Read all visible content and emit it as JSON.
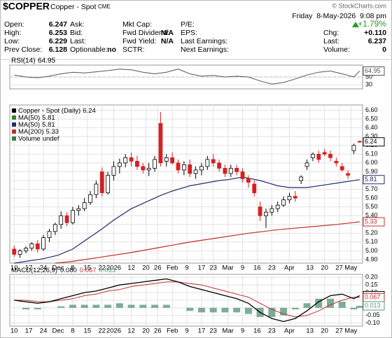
{
  "header": {
    "symbol": "$COPPER",
    "name": "Copper - Spot",
    "exchange": "CME",
    "copyright": "© StockCharts.com",
    "date": "Friday  8-May-2026  9:08 pm",
    "change_pct": "+1.79%",
    "columns": [
      [
        {
          "label": "Open:",
          "value": "6.247"
        },
        {
          "label": "High:",
          "value": "6.253"
        },
        {
          "label": "Low:",
          "value": "6.229"
        },
        {
          "label": "Prev Close:",
          "value": "6.128"
        }
      ],
      [
        {
          "label": "Ask:"
        },
        {
          "label": "Bid:"
        },
        {
          "label": "Last:"
        },
        {
          "label": "Optionable:",
          "value": "no"
        }
      ],
      [
        {
          "label": "Mkt Cap:"
        },
        {
          "label": "Fwd Dividend:",
          "value": "N/A"
        },
        {
          "label": "Fwd Yield:",
          "value": "N/A"
        },
        {
          "label": "SCTR:"
        }
      ],
      [
        {
          "label": "P/E:"
        },
        {
          "label": "EPS:"
        },
        {
          "label": "Last Earnings:"
        },
        {
          "label": "Next Earnings:"
        }
      ],
      [
        {
          "label": "Chg:",
          "value": "+0.110"
        },
        {
          "label": "Last:",
          "value": "6.237"
        },
        {
          "label": "Volume:",
          "value": "0"
        }
      ]
    ]
  },
  "chart_data": [
    {
      "type": "line",
      "title": "RSI(14)",
      "xlim": [
        -1.5,
        119
      ],
      "ylim": [
        20,
        80
      ],
      "yticks": [
        30,
        50
      ],
      "grid": true,
      "x": [
        0,
        4,
        8,
        12,
        16,
        20,
        24,
        28,
        32,
        36,
        40,
        44,
        48,
        52,
        56,
        60,
        64,
        68,
        72,
        76,
        80,
        84,
        88,
        92,
        96,
        100,
        104,
        108,
        112,
        116,
        118
      ],
      "series": [
        {
          "color": "#555555",
          "values": [
            55,
            50,
            48,
            52,
            58,
            62,
            60,
            63,
            66,
            70,
            68,
            62,
            58,
            62,
            70,
            58,
            52,
            54,
            50,
            52,
            50,
            40,
            32,
            36,
            45,
            55,
            62,
            65,
            58,
            50,
            64.95
          ]
        }
      ],
      "tags": [
        {
          "value": 64.95,
          "color": "#555555"
        }
      ]
    },
    {
      "type": "candlestick",
      "xlim": [
        -1.5,
        119
      ],
      "ylim": [
        4.86,
        6.66
      ],
      "grid": true,
      "yticks": [
        {
          "value": 6.6,
          "label": "6.60"
        },
        {
          "value": 6.5,
          "label": "6.50"
        },
        {
          "value": 6.4,
          "label": "6.40"
        },
        {
          "value": 6.3,
          "label": "6.30"
        },
        {
          "value": 6.2,
          "label": "6.20"
        },
        {
          "value": 6.1,
          "label": "6.10"
        },
        {
          "value": 6.0,
          "label": "6.00"
        },
        {
          "value": 5.9,
          "label": "5.90"
        },
        {
          "value": 5.8,
          "label": "5.80"
        },
        {
          "value": 5.7,
          "label": "5.70"
        },
        {
          "value": 5.6,
          "label": "5.60"
        },
        {
          "value": 5.5,
          "label": "5.50"
        },
        {
          "value": 5.4,
          "label": "5.40"
        },
        {
          "value": 5.3,
          "label": "5.30"
        },
        {
          "value": 5.2,
          "label": "5.20"
        },
        {
          "value": 5.1,
          "label": "5.10"
        },
        {
          "value": 5.0,
          "label": "5.00"
        },
        {
          "value": 4.9,
          "label": "4.90"
        }
      ],
      "xticks": [
        {
          "value": 0,
          "label": "10"
        },
        {
          "value": 5,
          "label": "17"
        },
        {
          "value": 10,
          "label": "24"
        },
        {
          "value": 15,
          "label": "Dec"
        },
        {
          "value": 20,
          "label": "8"
        },
        {
          "value": 25,
          "label": "15"
        },
        {
          "value": 30,
          "label": "22"
        },
        {
          "value": 34,
          "label": "2026"
        },
        {
          "value": 40,
          "label": "12"
        },
        {
          "value": 45,
          "label": "20"
        },
        {
          "value": 49,
          "label": "26"
        },
        {
          "value": 54,
          "label": "Feb"
        },
        {
          "value": 59,
          "label": "9"
        },
        {
          "value": 64,
          "label": "17"
        },
        {
          "value": 68,
          "label": "23"
        },
        {
          "value": 73,
          "label": "Mar"
        },
        {
          "value": 78,
          "label": "9"
        },
        {
          "value": 83,
          "label": "16"
        },
        {
          "value": 88,
          "label": "23"
        },
        {
          "value": 94,
          "label": "Apr"
        },
        {
          "value": 101,
          "label": "13"
        },
        {
          "value": 106,
          "label": "20"
        },
        {
          "value": 111,
          "label": "27"
        },
        {
          "value": 115,
          "label": "May"
        }
      ],
      "legend": [
        {
          "name": "Copper - Spot (Daily)",
          "label": "6.24",
          "color": "#000000"
        },
        {
          "name": "MA(50)",
          "label": "5.81",
          "color": "#2a8a2a"
        },
        {
          "name": "MA(50)",
          "label": "5.81",
          "color": "#1f2f6e"
        },
        {
          "name": "MA(200)",
          "label": "5.33",
          "color": "#c0302a"
        },
        {
          "name": "Volume",
          "label": "undef",
          "color": "#3a7a3a"
        }
      ],
      "x": [
        0,
        2,
        4,
        6,
        8,
        10,
        12,
        14,
        16,
        18,
        20,
        22,
        24,
        26,
        28,
        30,
        32,
        34,
        36,
        38,
        40,
        42,
        44,
        46,
        48,
        50,
        52,
        54,
        56,
        58,
        60,
        62,
        64,
        66,
        68,
        70,
        72,
        74,
        76,
        78,
        80,
        82,
        84,
        86,
        88,
        90,
        92,
        94,
        96,
        98,
        100,
        102,
        104,
        106,
        108,
        110,
        112,
        114,
        116,
        118
      ],
      "open": [
        5.02,
        4.96,
        5.0,
        5.03,
        5.08,
        5.02,
        5.15,
        5.22,
        5.3,
        5.4,
        5.32,
        5.46,
        5.48,
        5.55,
        5.64,
        5.9,
        5.66,
        5.86,
        5.96,
        6.0,
        6.06,
        6.02,
        5.96,
        5.92,
        5.94,
        6.45,
        6.02,
        6.06,
        6.0,
        5.92,
        5.98,
        5.88,
        5.92,
        5.96,
        6.04,
        6.0,
        5.94,
        5.88,
        5.94,
        5.9,
        5.82,
        5.76,
        5.5,
        5.4,
        5.44,
        5.48,
        5.52,
        5.58,
        5.62,
        5.8,
        5.96,
        6.06,
        6.1,
        6.12,
        6.1,
        6.02,
        5.96,
        5.88,
        6.14,
        6.247
      ],
      "high": [
        5.06,
        5.02,
        5.05,
        5.1,
        5.12,
        5.18,
        5.25,
        5.32,
        5.45,
        5.44,
        5.5,
        5.52,
        5.6,
        5.68,
        5.8,
        5.95,
        5.9,
        6.02,
        6.05,
        6.1,
        6.12,
        6.08,
        6.0,
        6.0,
        6.08,
        6.58,
        6.1,
        6.12,
        6.04,
        6.02,
        6.04,
        5.96,
        6.0,
        6.08,
        6.1,
        6.04,
        5.98,
        5.98,
        5.98,
        5.94,
        5.86,
        5.8,
        5.56,
        5.48,
        5.52,
        5.56,
        5.62,
        5.66,
        5.68,
        5.86,
        6.04,
        6.12,
        6.14,
        6.16,
        6.14,
        6.06,
        6.0,
        5.92,
        6.22,
        6.253
      ],
      "low": [
        4.93,
        4.92,
        4.97,
        5.0,
        4.98,
        5.0,
        5.1,
        5.18,
        5.25,
        5.28,
        5.3,
        5.4,
        5.45,
        5.52,
        5.6,
        5.62,
        5.64,
        5.8,
        5.88,
        5.95,
        5.96,
        5.92,
        5.88,
        5.85,
        5.9,
        5.96,
        5.96,
        5.98,
        5.88,
        5.86,
        5.84,
        5.82,
        5.86,
        5.92,
        5.96,
        5.9,
        5.84,
        5.84,
        5.86,
        5.78,
        5.72,
        5.62,
        5.34,
        5.26,
        5.4,
        5.44,
        5.5,
        5.54,
        5.56,
        5.76,
        5.92,
        6.02,
        6.0,
        6.08,
        6.02,
        5.96,
        5.9,
        5.82,
        6.1,
        6.229
      ],
      "close": [
        4.96,
        5.0,
        5.03,
        5.08,
        5.02,
        5.15,
        5.22,
        5.3,
        5.4,
        5.32,
        5.46,
        5.48,
        5.55,
        5.64,
        5.76,
        5.66,
        5.86,
        5.96,
        6.0,
        6.06,
        6.02,
        5.96,
        5.92,
        5.94,
        6.04,
        6.0,
        6.06,
        6.0,
        5.92,
        5.98,
        5.88,
        5.92,
        5.96,
        6.04,
        6.0,
        5.94,
        5.88,
        5.94,
        5.9,
        5.82,
        5.78,
        5.66,
        5.4,
        5.44,
        5.48,
        5.52,
        5.58,
        5.62,
        5.6,
        5.84,
        6.0,
        6.1,
        6.04,
        6.1,
        6.06,
        6.0,
        5.92,
        5.86,
        6.2,
        6.237
      ],
      "lines": [
        {
          "color": "#1f2f6e",
          "x": [
            0,
            10,
            15,
            20,
            30,
            34,
            40,
            50,
            54,
            60,
            70,
            73,
            78,
            84,
            90,
            94,
            100,
            106,
            112,
            118
          ],
          "values": [
            4.86,
            4.91,
            4.95,
            5.02,
            5.25,
            5.35,
            5.48,
            5.63,
            5.68,
            5.74,
            5.8,
            5.81,
            5.84,
            5.8,
            5.74,
            5.72,
            5.72,
            5.75,
            5.78,
            5.81
          ]
        },
        {
          "color": "#c0302a",
          "x": [
            14,
            20,
            30,
            40,
            50,
            60,
            70,
            80,
            90,
            100,
            110,
            118
          ],
          "values": [
            4.86,
            4.88,
            4.93,
            4.98,
            5.04,
            5.1,
            5.15,
            5.2,
            5.24,
            5.27,
            5.3,
            5.33
          ]
        }
      ],
      "tags": [
        {
          "value": 6.24,
          "color": "#000000"
        },
        {
          "value": 5.81,
          "color": "#1f2f6e"
        },
        {
          "value": 5.33,
          "color": "#c0302a"
        }
      ]
    },
    {
      "type": "macd",
      "title": "MACD(12,26,9)",
      "xlim": [
        -1.5,
        119
      ],
      "ylim": [
        -0.12,
        0.22
      ],
      "grid": true,
      "yticks": [
        {
          "value": 0.2,
          "label": "0.20"
        },
        0.15,
        {
          "value": 0.1,
          "label": "0.10"
        },
        0.05,
        {
          "value": 0,
          "label": "0.00"
        },
        -0.05,
        {
          "value": -0.1,
          "label": "-0.10"
        }
      ],
      "xticks": [
        {
          "value": 0,
          "label": "10"
        },
        {
          "value": 5,
          "label": "17"
        },
        {
          "value": 10,
          "label": "24"
        },
        {
          "value": 15,
          "label": "Dec"
        },
        {
          "value": 20,
          "label": "8"
        },
        {
          "value": 25,
          "label": "15"
        },
        {
          "value": 30,
          "label": "22"
        },
        {
          "value": 34,
          "label": "2026"
        },
        {
          "value": 40,
          "label": "12"
        },
        {
          "value": 45,
          "label": "20"
        },
        {
          "value": 49,
          "label": "26"
        },
        {
          "value": 54,
          "label": "Feb"
        },
        {
          "value": 59,
          "label": "9"
        },
        {
          "value": 64,
          "label": "17"
        },
        {
          "value": 68,
          "label": "23"
        },
        {
          "value": 73,
          "label": "Mar"
        },
        {
          "value": 78,
          "label": "9"
        },
        {
          "value": 83,
          "label": "16"
        },
        {
          "value": 88,
          "label": "23"
        },
        {
          "value": 94,
          "label": "Apr"
        },
        {
          "value": 101,
          "label": "13"
        },
        {
          "value": 106,
          "label": "20"
        },
        {
          "value": 111,
          "label": "27"
        },
        {
          "value": 115,
          "label": "May"
        }
      ],
      "x": [
        0,
        4,
        8,
        12,
        16,
        20,
        24,
        28,
        32,
        36,
        40,
        44,
        48,
        52,
        56,
        60,
        64,
        68,
        72,
        76,
        80,
        84,
        88,
        92,
        96,
        100,
        104,
        108,
        112,
        116,
        118
      ],
      "macd": [
        0.05,
        0.04,
        0.03,
        0.04,
        0.06,
        0.08,
        0.1,
        0.11,
        0.13,
        0.15,
        0.16,
        0.17,
        0.18,
        0.19,
        0.17,
        0.14,
        0.12,
        0.1,
        0.08,
        0.06,
        0.03,
        -0.03,
        -0.07,
        -0.09,
        -0.07,
        -0.02,
        0.04,
        0.08,
        0.09,
        0.06,
        0.08
      ],
      "signal": [
        0.05,
        0.05,
        0.04,
        0.04,
        0.05,
        0.06,
        0.08,
        0.09,
        0.11,
        0.12,
        0.14,
        0.15,
        0.16,
        0.17,
        0.17,
        0.16,
        0.15,
        0.13,
        0.11,
        0.09,
        0.07,
        0.03,
        -0.01,
        -0.04,
        -0.06,
        -0.05,
        -0.02,
        0.02,
        0.05,
        0.07,
        0.067
      ],
      "histogram": [
        0,
        -0.01,
        -0.01,
        0,
        0.01,
        0.02,
        0.02,
        0.02,
        0.02,
        0.03,
        0.02,
        0.02,
        0.02,
        0.02,
        0,
        -0.02,
        -0.03,
        -0.03,
        -0.03,
        -0.03,
        -0.04,
        -0.06,
        -0.06,
        -0.05,
        -0.01,
        0.03,
        0.06,
        0.06,
        0.04,
        -0.01,
        0.013
      ],
      "colors": [
        "#000000",
        "#c0302a",
        "#5a9a7a"
      ],
      "tags": [
        {
          "value": 0.08,
          "label": "0.080",
          "color": "#000000"
        },
        {
          "value": 0.067,
          "label": "0.067",
          "color": "#c0302a"
        },
        {
          "value": 0.013,
          "label": "0.013",
          "color": "#5a9a7a"
        }
      ]
    }
  ]
}
